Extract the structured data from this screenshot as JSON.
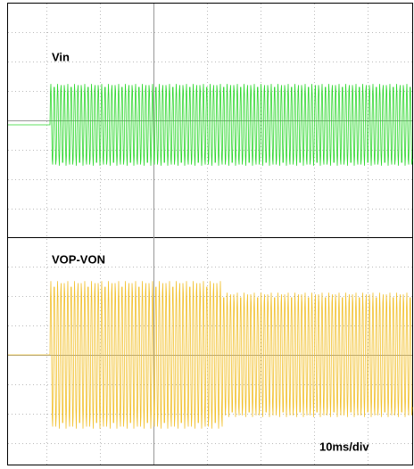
{
  "traces": [
    {
      "label": "Vin"
    },
    {
      "label": "VOP-VON"
    }
  ],
  "timebase": "10ms/div"
}
